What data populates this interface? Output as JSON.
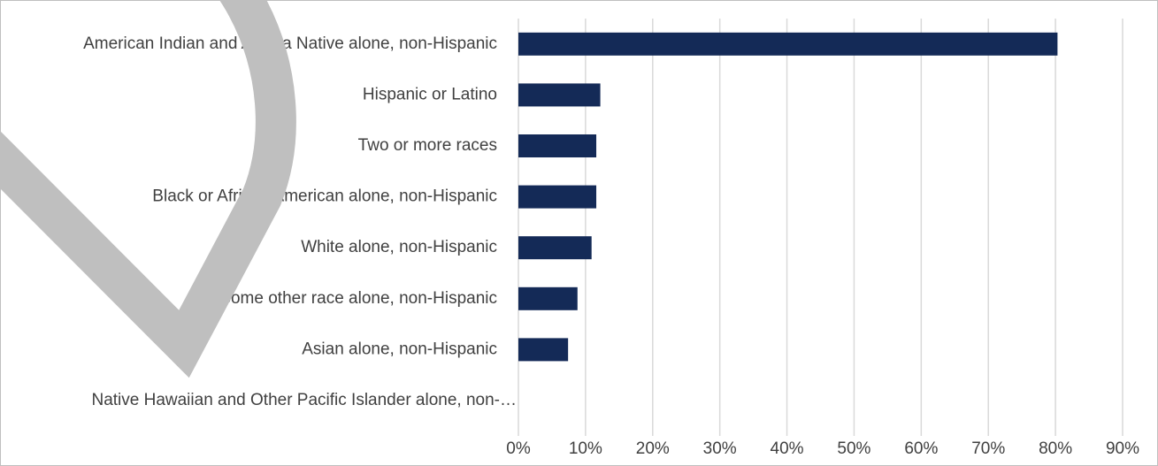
{
  "chart_data": {
    "type": "bar",
    "orientation": "horizontal",
    "categories": [
      "American Indian and Alaska Native alone, non-Hispanic",
      "Hispanic or Latino",
      "Two or more races",
      "Black or African American alone, non-Hispanic",
      "White alone, non-Hispanic",
      "Some other race alone, non-Hispanic",
      "Asian alone, non-Hispanic",
      "Native Hawaiian and Other Pacific Islander alone, non-…"
    ],
    "values": [
      80.3,
      12.2,
      11.6,
      11.6,
      10.9,
      8.8,
      7.4,
      0
    ],
    "value_unit": "%",
    "xlim": [
      0,
      90
    ],
    "x_ticks": [
      0,
      10,
      20,
      30,
      40,
      50,
      60,
      70,
      80,
      90
    ],
    "x_tick_labels": [
      "0%",
      "10%",
      "20%",
      "30%",
      "40%",
      "50%",
      "60%",
      "70%",
      "80%",
      "90%"
    ],
    "title": "",
    "xlabel": "",
    "ylabel": "",
    "grid": "vertical",
    "legend": "none",
    "bar_color": "#142a57",
    "grid_color": "#d9d9d9",
    "label_color": "#404040"
  },
  "watermark": {
    "shape": "letter-D",
    "color": "#bfbfbf"
  }
}
